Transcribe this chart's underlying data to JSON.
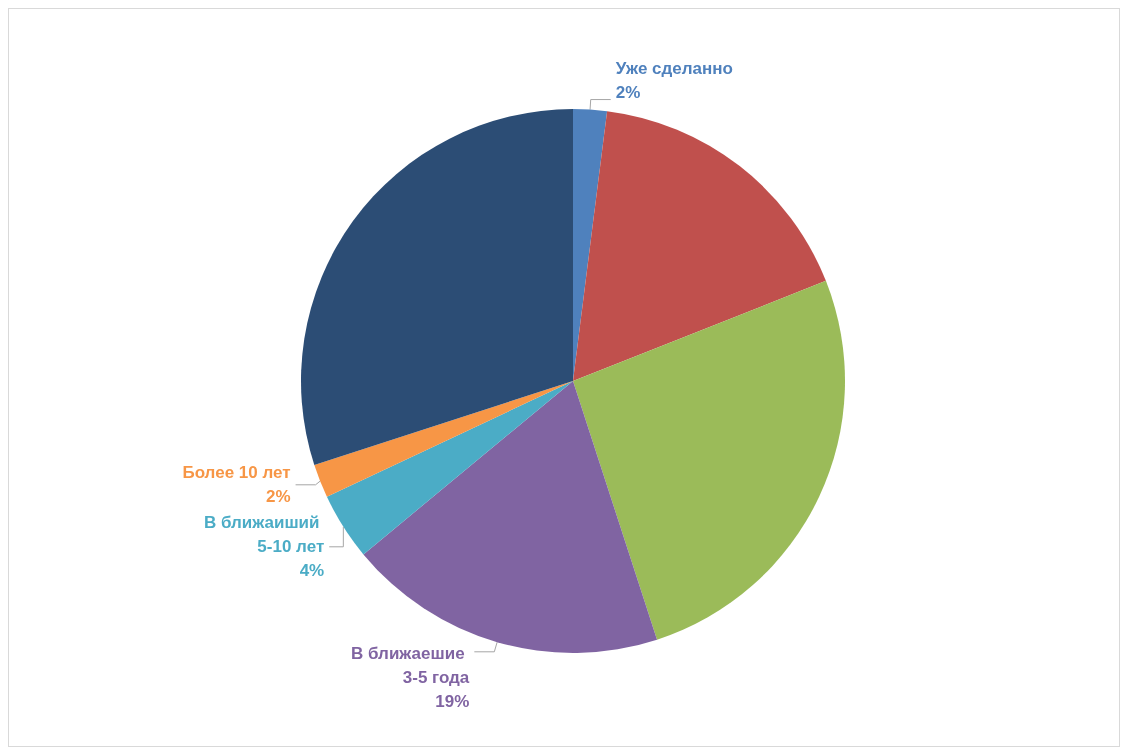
{
  "chart_data": {
    "type": "pie",
    "categories": [
      "Уже сделанно",
      null,
      null,
      "В ближаешие 3-5 года",
      "В ближаиший 5-10 лет",
      "Более 10 лет",
      null
    ],
    "values": [
      2,
      17,
      26,
      19,
      4,
      2,
      30
    ],
    "colors": [
      "#4f81bd",
      "#c0504d",
      "#9bbb59",
      "#8064a2",
      "#4bacc6",
      "#f79646",
      "#2c4d75"
    ],
    "value_labels": [
      "2%",
      null,
      null,
      "19%",
      "4%",
      "2%",
      null
    ],
    "legend": false
  }
}
